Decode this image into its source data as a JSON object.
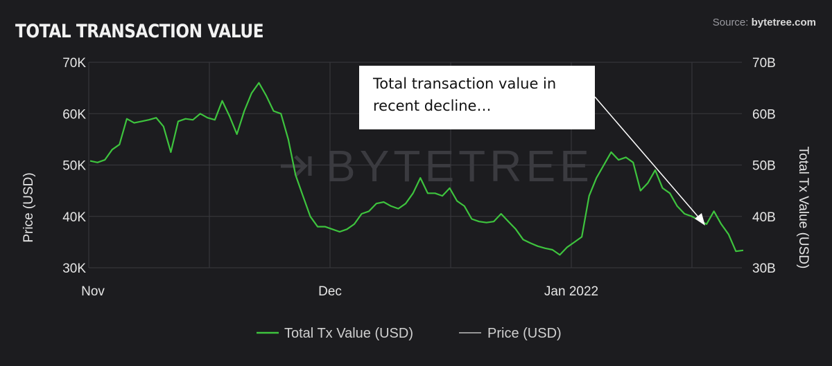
{
  "header": {
    "title": "TOTAL TRANSACTION VALUE",
    "source_prefix": "Source: ",
    "source_name": "bytetree.com"
  },
  "watermark": "BYTETREE",
  "annotation": {
    "line1": "Total transaction value in",
    "line2": "recent decline…"
  },
  "colors": {
    "background": "#1c1c1f",
    "tx_value_line": "#3ec43e",
    "price_line": "#bfbfbf",
    "grid": "#3a3a3f"
  },
  "chart_data": {
    "type": "line",
    "title": "TOTAL TRANSACTION VALUE",
    "x_ticks": [
      "Nov",
      "Dec",
      "Jan 2022"
    ],
    "y_left": {
      "label": "Price (USD)",
      "ticks": [
        "30K",
        "40K",
        "50K",
        "60K",
        "70K"
      ],
      "range": [
        30000,
        70000
      ]
    },
    "y_right": {
      "label": "Total Tx Value (USD)",
      "ticks": [
        "30B",
        "40B",
        "50B",
        "60B",
        "70B"
      ],
      "range": [
        30,
        70
      ]
    },
    "legend": {
      "position": "bottom"
    },
    "grid": true,
    "series": [
      {
        "name": "Total Tx Value (USD)",
        "axis": "right",
        "color": "#3ec43e",
        "x": [
          0,
          1,
          2,
          3,
          4,
          5,
          6,
          7,
          8,
          9,
          10,
          11,
          12,
          13,
          14,
          15,
          16,
          17,
          18,
          19,
          20,
          21,
          22,
          23,
          24,
          25,
          26,
          27,
          28,
          29,
          30,
          31,
          32,
          33,
          34,
          35,
          36,
          37,
          38,
          39,
          40,
          41,
          42,
          43,
          44,
          45,
          46,
          47,
          48,
          49,
          50,
          51,
          52,
          53,
          54,
          55,
          56,
          57,
          58,
          59,
          60,
          61,
          62,
          63,
          64,
          65,
          66,
          67,
          68,
          69,
          70,
          71,
          72,
          73,
          74,
          75,
          76,
          77,
          78,
          79,
          80,
          81,
          82,
          83,
          84,
          85,
          86,
          87,
          88,
          89
        ],
        "values": [
          50.8,
          50.5,
          51.0,
          53.0,
          54.0,
          59.0,
          58.2,
          58.5,
          58.8,
          59.2,
          57.5,
          52.5,
          58.5,
          59.0,
          58.8,
          60.0,
          59.2,
          58.8,
          62.5,
          59.5,
          56.0,
          60.5,
          64.0,
          66.0,
          63.5,
          60.5,
          60.0,
          55.0,
          48.0,
          44.0,
          40.0,
          38.0,
          38.0,
          37.5,
          37.0,
          37.5,
          38.5,
          40.5,
          41.0,
          42.5,
          42.8,
          42.0,
          41.5,
          42.5,
          44.5,
          47.5,
          44.5,
          44.5,
          44.0,
          45.5,
          43.0,
          42.0,
          39.5,
          39.0,
          38.8,
          39.0,
          40.5,
          39.0,
          37.5,
          35.5,
          34.8,
          34.2,
          33.8,
          33.5,
          32.5,
          34.0,
          35.0,
          36.0,
          44.0,
          47.5,
          50.0,
          52.5,
          51.0,
          51.5,
          50.5,
          45.0,
          46.5,
          49.0,
          45.5,
          44.5,
          42.0,
          40.5,
          40.0,
          39.2,
          38.5,
          41.0,
          38.5,
          36.5,
          33.2,
          33.4
        ],
        "x_range": [
          0,
          89
        ]
      },
      {
        "name": "Price (USD)",
        "axis": "left",
        "color": "#bfbfbf",
        "values": []
      }
    ]
  }
}
